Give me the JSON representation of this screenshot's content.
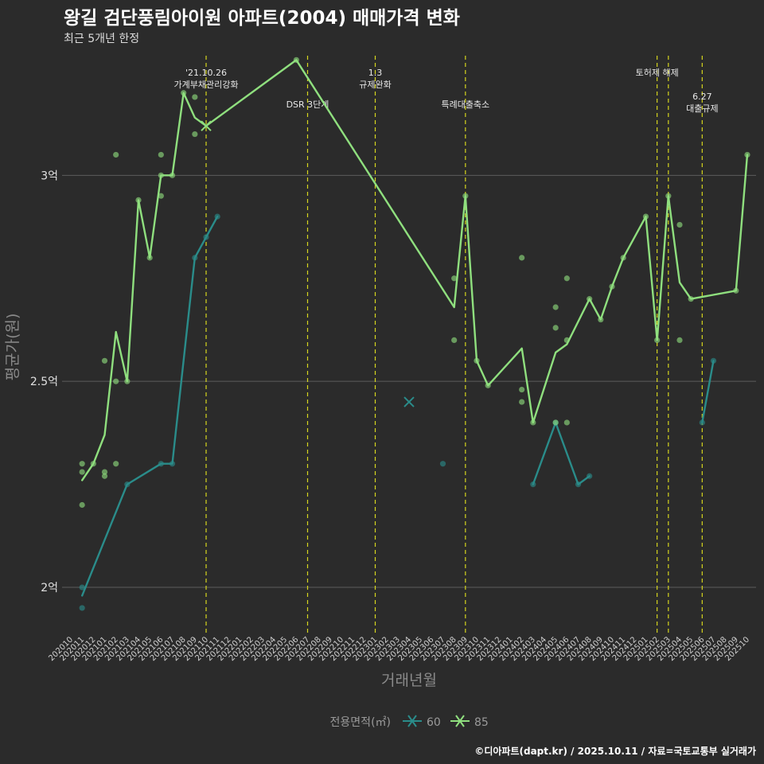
{
  "chart_data": {
    "type": "line",
    "title": "왕길 검단풍림아이원 아파트(2004) 매매가격 변화",
    "subtitle": "최근 5개년 한정",
    "xlabel": "거래년월",
    "ylabel": "평균가(원)",
    "ylim": [
      1.89,
      3.3
    ],
    "y_ticks": [
      {
        "value": 2.0,
        "label": "2억"
      },
      {
        "value": 2.5,
        "label": "2.5억"
      },
      {
        "value": 3.0,
        "label": "3억"
      }
    ],
    "x_categories": [
      "202010",
      "202011",
      "202012",
      "202101",
      "202102",
      "202103",
      "202104",
      "202105",
      "202106",
      "202107",
      "202108",
      "202109",
      "202110",
      "202111",
      "202112",
      "202201",
      "202202",
      "202203",
      "202204",
      "202205",
      "202206",
      "202207",
      "202208",
      "202209",
      "202210",
      "202211",
      "202212",
      "202301",
      "202302",
      "202303",
      "202304",
      "202305",
      "202306",
      "202307",
      "202308",
      "202309",
      "202310",
      "202311",
      "202312",
      "202401",
      "202402",
      "202403",
      "202404",
      "202405",
      "202406",
      "202407",
      "202408",
      "202409",
      "202410",
      "202411",
      "202412",
      "202501",
      "202502",
      "202503",
      "202504",
      "202505",
      "202506",
      "202507",
      "202508",
      "202509",
      "202510"
    ],
    "annotations": [
      {
        "x": 12.0,
        "lines": [
          "'21.10.26",
          "가계부채관리강화"
        ],
        "row": 0
      },
      {
        "x": 21.0,
        "lines": [
          "DSR 3단계"
        ],
        "row": 1
      },
      {
        "x": 27.0,
        "lines": [
          "1.3",
          "규제완화"
        ],
        "row": 0
      },
      {
        "x": 35.0,
        "lines": [
          "특례대출축소"
        ],
        "row": 1
      },
      {
        "x": 52.0,
        "lines": [
          "토허제 해제"
        ],
        "row": 0
      },
      {
        "x": 53.0,
        "lines": [],
        "row": 0
      },
      {
        "x": 56.0,
        "lines": [
          "6.27",
          "대출규제"
        ],
        "row": 2
      }
    ],
    "legend_title": "전용면적(㎡)",
    "series": [
      {
        "name": "60",
        "color": "#2a8c8a",
        "line": [
          [
            [
              1,
              1.98
            ],
            [
              5,
              2.25
            ],
            [
              8,
              2.3
            ],
            [
              9,
              2.3
            ],
            [
              11,
              2.8
            ],
            [
              12,
              2.85
            ],
            [
              13,
              2.9
            ]
          ],
          [
            [
              41,
              2.25
            ],
            [
              43,
              2.4
            ],
            [
              45,
              2.25
            ],
            [
              46,
              2.27
            ]
          ],
          [
            [
              56,
              2.4
            ],
            [
              57,
              2.55
            ]
          ]
        ],
        "points": [
          [
            1,
            2.0
          ],
          [
            1,
            1.95
          ],
          [
            5,
            2.25
          ],
          [
            8,
            2.3
          ],
          [
            9,
            2.3
          ],
          [
            11,
            2.8
          ],
          [
            12,
            2.85
          ],
          [
            13,
            2.9
          ],
          [
            33,
            2.3
          ],
          [
            41,
            2.25
          ],
          [
            43,
            2.4
          ],
          [
            45,
            2.25
          ],
          [
            46,
            2.27
          ],
          [
            56,
            2.4
          ],
          [
            57,
            2.55
          ]
        ],
        "crosses": [
          [
            30,
            2.45
          ]
        ]
      },
      {
        "name": "85",
        "color": "#8fdf7e",
        "line": [
          [
            [
              1,
              2.26
            ],
            [
              2,
              2.3
            ],
            [
              3,
              2.37
            ],
            [
              4,
              2.62
            ],
            [
              5,
              2.5
            ],
            [
              6,
              2.94
            ],
            [
              7,
              2.8
            ],
            [
              8,
              3.0
            ],
            [
              9,
              3.0
            ],
            [
              10,
              3.2
            ],
            [
              11,
              3.14
            ],
            [
              12,
              3.12
            ],
            [
              20,
              3.28
            ],
            [
              34,
              2.68
            ],
            [
              35,
              2.95
            ],
            [
              36,
              2.55
            ],
            [
              37,
              2.49
            ],
            [
              40,
              2.58
            ],
            [
              41,
              2.4
            ],
            [
              43,
              2.57
            ],
            [
              44,
              2.59
            ],
            [
              46,
              2.7
            ],
            [
              47,
              2.65
            ],
            [
              48,
              2.73
            ],
            [
              49,
              2.8
            ],
            [
              51,
              2.9
            ],
            [
              52,
              2.6
            ],
            [
              53,
              2.95
            ],
            [
              54,
              2.74
            ],
            [
              55,
              2.7
            ],
            [
              59,
              2.72
            ],
            [
              60,
              3.05
            ]
          ]
        ],
        "points": [
          [
            1,
            2.3
          ],
          [
            1,
            2.28
          ],
          [
            1,
            2.2
          ],
          [
            2,
            2.3
          ],
          [
            3,
            2.55
          ],
          [
            3,
            2.28
          ],
          [
            3,
            2.27
          ],
          [
            4,
            3.05
          ],
          [
            4,
            2.5
          ],
          [
            4,
            2.3
          ],
          [
            5,
            2.5
          ],
          [
            6,
            2.94
          ],
          [
            7,
            2.8
          ],
          [
            8,
            3.05
          ],
          [
            8,
            2.95
          ],
          [
            8,
            3.0
          ],
          [
            9,
            3.0
          ],
          [
            10,
            3.2
          ],
          [
            11,
            3.19
          ],
          [
            11,
            3.1
          ],
          [
            20,
            3.28
          ],
          [
            34,
            2.75
          ],
          [
            34,
            2.6
          ],
          [
            35,
            2.95
          ],
          [
            36,
            2.55
          ],
          [
            37,
            2.49
          ],
          [
            40,
            2.8
          ],
          [
            40,
            2.48
          ],
          [
            40,
            2.45
          ],
          [
            41,
            2.4
          ],
          [
            43,
            2.68
          ],
          [
            43,
            2.63
          ],
          [
            43,
            2.4
          ],
          [
            44,
            2.75
          ],
          [
            44,
            2.6
          ],
          [
            44,
            2.4
          ],
          [
            46,
            2.7
          ],
          [
            47,
            2.65
          ],
          [
            48,
            2.73
          ],
          [
            49,
            2.8
          ],
          [
            51,
            2.9
          ],
          [
            52,
            2.6
          ],
          [
            53,
            2.95
          ],
          [
            54,
            2.88
          ],
          [
            54,
            2.6
          ],
          [
            55,
            2.7
          ],
          [
            59,
            2.72
          ],
          [
            60,
            3.05
          ]
        ],
        "crosses": [
          [
            12,
            3.12
          ]
        ]
      }
    ],
    "caption": "©디아파트(dapt.kr) / 2025.10.11 / 자료=국토교통부 실거래가"
  }
}
